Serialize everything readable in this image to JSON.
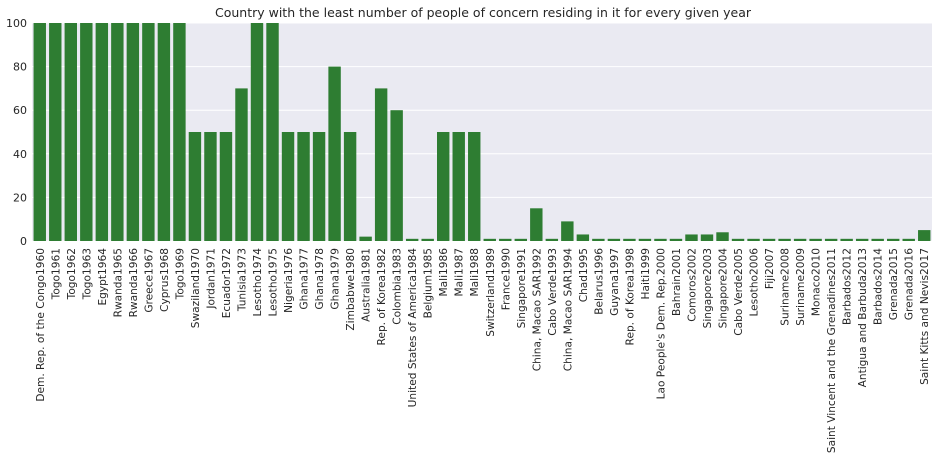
{
  "chart_data": {
    "type": "bar",
    "title": "Country with the least number of people of concern residing in it for every given year",
    "xlabel": "",
    "ylabel": "",
    "ylim": [
      0,
      100
    ],
    "yticks": [
      0,
      20,
      40,
      60,
      80,
      100
    ],
    "grid": true,
    "bar_color": "#2e7d32",
    "background_color": "#eaeaf2",
    "categories": [
      "Dem. Rep. of the Congo1960",
      "Togo1961",
      "Togo1962",
      "Togo1963",
      "Egypt1964",
      "Rwanda1965",
      "Rwanda1966",
      "Greece1967",
      "Cyprus1968",
      "Togo1969",
      "Swaziland1970",
      "Jordan1971",
      "Ecuador1972",
      "Tunisia1973",
      "Lesotho1974",
      "Lesotho1975",
      "Nigeria1976",
      "Ghana1977",
      "Ghana1978",
      "Ghana1979",
      "Zimbabwe1980",
      "Australia1981",
      "Rep. of Korea1982",
      "Colombia1983",
      "United States of America1984",
      "Belgium1985",
      "Mali1986",
      "Mali1987",
      "Mali1988",
      "Switzerland1989",
      "France1990",
      "Singapore1991",
      "China, Macao SAR1992",
      "Cabo Verde1993",
      "China, Macao SAR1994",
      "Chad1995",
      "Belarus1996",
      "Guyana1997",
      "Rep. of Korea1998",
      "Haiti1999",
      "Lao People's Dem. Rep.2000",
      "Bahrain2001",
      "Comoros2002",
      "Singapore2003",
      "Singapore2004",
      "Cabo Verde2005",
      "Lesotho2006",
      "Fiji2007",
      "Suriname2008",
      "Suriname2009",
      "Monaco2010",
      "Saint Vincent and the Grenadines2011",
      "Barbados2012",
      "Antigua and Barbuda2013",
      "Barbados2014",
      "Grenada2015",
      "Grenada2016",
      "Saint Kitts and Nevis2017"
    ],
    "values": [
      100,
      100,
      100,
      100,
      100,
      100,
      100,
      100,
      100,
      100,
      50,
      50,
      50,
      70,
      100,
      100,
      50,
      50,
      50,
      80,
      50,
      2,
      70,
      60,
      1,
      1,
      50,
      50,
      50,
      1,
      1,
      1,
      15,
      1,
      9,
      3,
      1,
      1,
      1,
      1,
      1,
      1,
      3,
      3,
      4,
      1,
      1,
      1,
      1,
      1,
      1,
      1,
      1,
      1,
      1,
      1,
      1,
      5
    ]
  }
}
